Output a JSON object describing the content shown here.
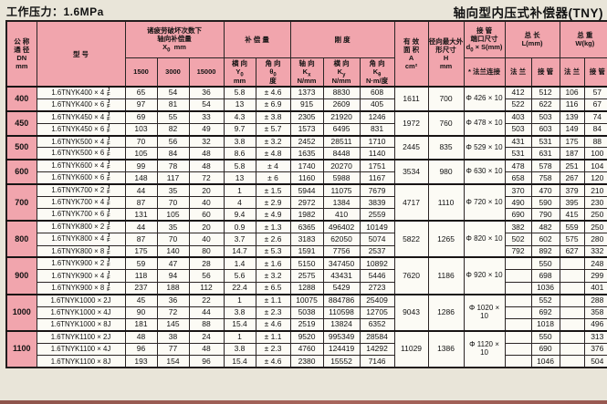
{
  "page": {
    "title_left": "工作压力：1.6MPa",
    "title_right": "轴向型内压式补偿器(TNY)"
  },
  "labels": {
    "jf": "J\nF"
  },
  "colors": {
    "pink": "#f1a5ad",
    "page_bg": "#e9e5d9",
    "cell_bg": "#fcfbf5",
    "border": "#2b2525"
  },
  "header": {
    "dn": "公 称\n通 径\nDN\nmm",
    "model": "型  号",
    "fatigue": {
      "line1": "诸疲劳破坏次数下",
      "line2": "轴向补偿量",
      "sym": "X",
      "sub": "0",
      "unit": "mm"
    },
    "cols": [
      "1500",
      "3000",
      "15000"
    ],
    "comp": {
      "title": "补 偿 量",
      "lat": {
        "name": "横 向",
        "sym": "Y",
        "sub": "0",
        "unit": "mm"
      },
      "ang": {
        "name": "角 向",
        "sym": "θ",
        "sub": "0",
        "unit": "度"
      }
    },
    "stiff": {
      "title": "刚  度",
      "axial": {
        "name": "轴 向",
        "sym": "K",
        "sub": "x",
        "unit": "N/mm"
      },
      "lat": {
        "name": "横 向",
        "sym": "K",
        "sub": "y",
        "unit": "N/mm"
      },
      "ang": {
        "name": "角 向",
        "sym": "K",
        "sub": "θ",
        "unit": "N·m/度"
      }
    },
    "area": "有 效\n面 积\nA\ncm²",
    "radial": "径向最大外\n形尺寸\nH\nmm",
    "pipe": {
      "line1": "接 管",
      "line2": "端口尺寸",
      "sym": "d",
      "sub": "0",
      "unit": " × S(mm)",
      "sub_header": "* 法兰连接"
    },
    "len": {
      "title": "总  长\nL(mm)",
      "flange": "法 兰",
      "pipe": "接 管"
    },
    "wt": {
      "title": "总  重\nW(kg)",
      "flange": "法 兰",
      "pipe": "接 管"
    }
  },
  "groups": [
    {
      "dn": "400",
      "area": "1611",
      "h": "700",
      "phi": "Φ 426 × 10",
      "rows": [
        {
          "model": "1.6TNYK400 × 4",
          "jf": true,
          "x1500": "65",
          "x3000": "54",
          "x15000": "36",
          "y0": "5.8",
          "theta": "± 4.6",
          "kx": "1373",
          "ky": "8830",
          "kth": "608",
          "lf": "412",
          "lp": "512",
          "wf": "106",
          "wp": "57"
        },
        {
          "model": "1.6TNYK400 × 6",
          "jf": true,
          "x1500": "97",
          "x3000": "81",
          "x15000": "54",
          "y0": "13",
          "theta": "± 6.9",
          "kx": "915",
          "ky": "2609",
          "kth": "405",
          "lf": "522",
          "lp": "622",
          "wf": "116",
          "wp": "67"
        }
      ]
    },
    {
      "dn": "450",
      "area": "1972",
      "h": "760",
      "phi": "Φ 478 × 10",
      "rows": [
        {
          "model": "1.6TNYK450 × 4",
          "jf": true,
          "x1500": "69",
          "x3000": "55",
          "x15000": "33",
          "y0": "4.3",
          "theta": "± 3.8",
          "kx": "2305",
          "ky": "21920",
          "kth": "1246",
          "lf": "403",
          "lp": "503",
          "wf": "139",
          "wp": "74"
        },
        {
          "model": "1.6TNYK450 × 6",
          "jf": true,
          "x1500": "103",
          "x3000": "82",
          "x15000": "49",
          "y0": "9.7",
          "theta": "± 5.7",
          "kx": "1573",
          "ky": "6495",
          "kth": "831",
          "lf": "503",
          "lp": "603",
          "wf": "149",
          "wp": "84"
        }
      ]
    },
    {
      "dn": "500",
      "area": "2445",
      "h": "835",
      "phi": "Φ 529 × 10",
      "rows": [
        {
          "model": "1.6TNYK500 × 4",
          "jf": true,
          "x1500": "70",
          "x3000": "56",
          "x15000": "32",
          "y0": "3.8",
          "theta": "± 3.2",
          "kx": "2452",
          "ky": "28511",
          "kth": "1710",
          "lf": "431",
          "lp": "531",
          "wf": "175",
          "wp": "88"
        },
        {
          "model": "1.6TNYK500 × 6",
          "jf": true,
          "x1500": "105",
          "x3000": "84",
          "x15000": "48",
          "y0": "8.6",
          "theta": "± 4.8",
          "kx": "1635",
          "ky": "8448",
          "kth": "1140",
          "lf": "531",
          "lp": "631",
          "wf": "187",
          "wp": "100"
        }
      ]
    },
    {
      "dn": "600",
      "area": "3534",
      "h": "980",
      "phi": "Φ 630 × 10",
      "rows": [
        {
          "model": "1.6TNYK600 × 4",
          "jf": true,
          "x1500": "99",
          "x3000": "78",
          "x15000": "48",
          "y0": "5.8",
          "theta": "± 4",
          "kx": "1740",
          "ky": "20270",
          "kth": "1751",
          "lf": "478",
          "lp": "578",
          "wf": "251",
          "wp": "104"
        },
        {
          "model": "1.6TNYK600 × 6",
          "jf": true,
          "x1500": "148",
          "x3000": "117",
          "x15000": "72",
          "y0": "13",
          "theta": "± 6",
          "kx": "1160",
          "ky": "5988",
          "kth": "1167",
          "lf": "658",
          "lp": "758",
          "wf": "267",
          "wp": "120"
        }
      ]
    },
    {
      "dn": "700",
      "area": "4717",
      "h": "1110",
      "phi": "Φ 720 × 10",
      "rows": [
        {
          "model": "1.6TNYK700 × 2",
          "jf": true,
          "x1500": "44",
          "x3000": "35",
          "x15000": "20",
          "y0": "1",
          "theta": "± 1.5",
          "kx": "5944",
          "ky": "11075",
          "kth": "7679",
          "lf": "370",
          "lp": "470",
          "wf": "379",
          "wp": "210"
        },
        {
          "model": "1.6TNYK700 × 4",
          "jf": true,
          "x1500": "87",
          "x3000": "70",
          "x15000": "40",
          "y0": "4",
          "theta": "± 2.9",
          "kx": "2972",
          "ky": "1384",
          "kth": "3839",
          "lf": "490",
          "lp": "590",
          "wf": "395",
          "wp": "230"
        },
        {
          "model": "1.6TNYK700 × 6",
          "jf": true,
          "x1500": "131",
          "x3000": "105",
          "x15000": "60",
          "y0": "9.4",
          "theta": "± 4.9",
          "kx": "1982",
          "ky": "410",
          "kth": "2559",
          "lf": "690",
          "lp": "790",
          "wf": "415",
          "wp": "250"
        }
      ]
    },
    {
      "dn": "800",
      "area": "5822",
      "h": "1265",
      "phi": "Φ 820 × 10",
      "rows": [
        {
          "model": "1.6TNYK800 × 2",
          "jf": true,
          "x1500": "44",
          "x3000": "35",
          "x15000": "20",
          "y0": "0.9",
          "theta": "± 1.3",
          "kx": "6365",
          "ky": "496402",
          "kth": "10149",
          "lf": "382",
          "lp": "482",
          "wf": "559",
          "wp": "250"
        },
        {
          "model": "1.6TNYK800 × 4",
          "jf": true,
          "x1500": "87",
          "x3000": "70",
          "x15000": "40",
          "y0": "3.7",
          "theta": "± 2.6",
          "kx": "3183",
          "ky": "62050",
          "kth": "5074",
          "lf": "502",
          "lp": "602",
          "wf": "575",
          "wp": "280"
        },
        {
          "model": "1.6TNYK800 × 8",
          "jf": true,
          "x1500": "175",
          "x3000": "140",
          "x15000": "80",
          "y0": "14.7",
          "theta": "± 5.3",
          "kx": "1591",
          "ky": "7756",
          "kth": "2537",
          "lf": "792",
          "lp": "892",
          "wf": "627",
          "wp": "332"
        }
      ]
    },
    {
      "dn": "900",
      "area": "7620",
      "h": "1186",
      "phi": "Φ 920 × 10",
      "rows": [
        {
          "model": "1.6TNYK900 × 2",
          "jf": true,
          "x1500": "59",
          "x3000": "47",
          "x15000": "28",
          "y0": "1.4",
          "theta": "± 1.6",
          "kx": "5150",
          "ky": "347450",
          "kth": "10892",
          "lf": "",
          "lp": "550",
          "wf": "",
          "wp": "248"
        },
        {
          "model": "1.6TNYK900 × 4",
          "jf": true,
          "x1500": "118",
          "x3000": "94",
          "x15000": "56",
          "y0": "5.6",
          "theta": "± 3.2",
          "kx": "2575",
          "ky": "43431",
          "kth": "5446",
          "lf": "",
          "lp": "698",
          "wf": "",
          "wp": "299"
        },
        {
          "model": "1.6TNYK900 × 8",
          "jf": true,
          "x1500": "237",
          "x3000": "188",
          "x15000": "112",
          "y0": "22.4",
          "theta": "± 6.5",
          "kx": "1288",
          "ky": "5429",
          "kth": "2723",
          "lf": "",
          "lp": "1036",
          "wf": "",
          "wp": "401"
        }
      ]
    },
    {
      "dn": "1000",
      "area": "9043",
      "h": "1286",
      "phi": "Φ 1020 × 10",
      "rows": [
        {
          "model": "1.6TNYK1000 × 2J",
          "jf": false,
          "x1500": "45",
          "x3000": "36",
          "x15000": "22",
          "y0": "1",
          "theta": "± 1.1",
          "kx": "10075",
          "ky": "884786",
          "kth": "25409",
          "lf": "",
          "lp": "552",
          "wf": "",
          "wp": "288"
        },
        {
          "model": "1.6TNYK1000 × 4J",
          "jf": false,
          "x1500": "90",
          "x3000": "72",
          "x15000": "44",
          "y0": "3.8",
          "theta": "± 2.3",
          "kx": "5038",
          "ky": "110598",
          "kth": "12705",
          "lf": "",
          "lp": "692",
          "wf": "",
          "wp": "358"
        },
        {
          "model": "1.6TNYK1000 × 8J",
          "jf": false,
          "x1500": "181",
          "x3000": "145",
          "x15000": "88",
          "y0": "15.4",
          "theta": "± 4.6",
          "kx": "2519",
          "ky": "13824",
          "kth": "6352",
          "lf": "",
          "lp": "1018",
          "wf": "",
          "wp": "496"
        }
      ]
    },
    {
      "dn": "1100",
      "area": "11029",
      "h": "1386",
      "phi": "Φ 1120 × 10",
      "rows": [
        {
          "model": "1.6TNYK1100 × 2J",
          "jf": false,
          "x1500": "48",
          "x3000": "38",
          "x15000": "24",
          "y0": "1",
          "theta": "± 1.1",
          "kx": "9520",
          "ky": "995349",
          "kth": "28584",
          "lf": "",
          "lp": "550",
          "wf": "",
          "wp": "313"
        },
        {
          "model": "1.6TNYK1100 × 4J",
          "jf": false,
          "x1500": "96",
          "x3000": "77",
          "x15000": "48",
          "y0": "3.8",
          "theta": "± 2.3",
          "kx": "4760",
          "ky": "124419",
          "kth": "14292",
          "lf": "",
          "lp": "690",
          "wf": "",
          "wp": "376"
        },
        {
          "model": "1.6TNYK1100 × 8J",
          "jf": false,
          "x1500": "193",
          "x3000": "154",
          "x15000": "96",
          "y0": "15.4",
          "theta": "± 4.6",
          "kx": "2380",
          "ky": "15552",
          "kth": "7146",
          "lf": "",
          "lp": "1046",
          "wf": "",
          "wp": "504"
        }
      ]
    }
  ]
}
